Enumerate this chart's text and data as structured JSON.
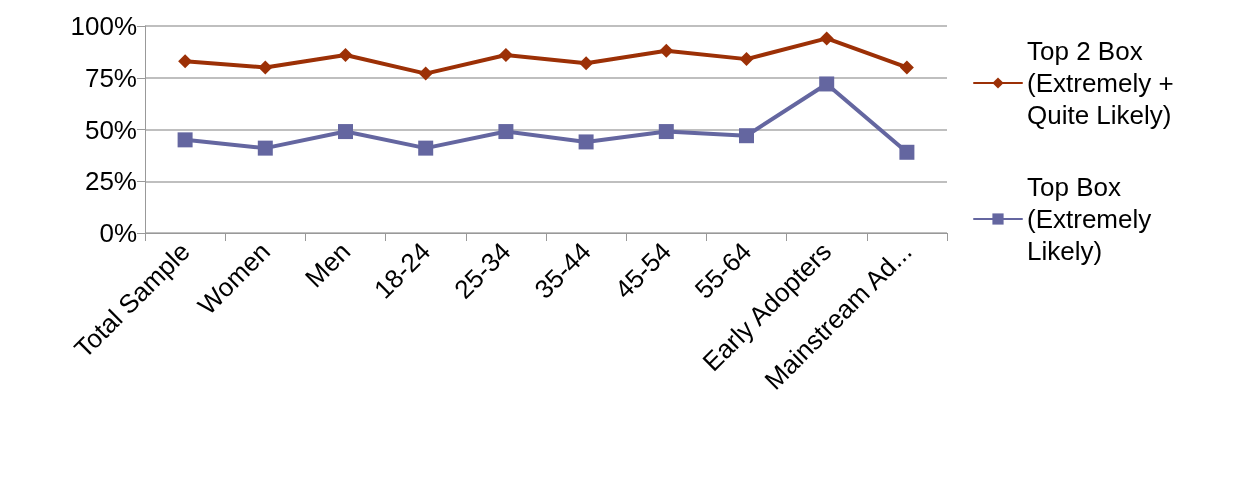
{
  "chart_data": {
    "type": "line",
    "categories": [
      "Total Sample",
      "Women",
      "Men",
      "18-24",
      "25-34",
      "35-44",
      "45-54",
      "55-64",
      "Early Adopters",
      "Mainstream Ad..."
    ],
    "series": [
      {
        "name": "Top 2 Box (Extremely + Quite Likely)",
        "color": "#9c3006",
        "marker": "diamond",
        "values": [
          83,
          80,
          86,
          77,
          86,
          82,
          88,
          84,
          94,
          80
        ]
      },
      {
        "name": "Top Box (Extremely Likely)",
        "color": "#6466a0",
        "marker": "square",
        "values": [
          45,
          41,
          49,
          41,
          49,
          44,
          49,
          47,
          72,
          39
        ]
      }
    ],
    "ylim": [
      0,
      100
    ],
    "yticks": [
      {
        "value": 0,
        "label": "0%"
      },
      {
        "value": 25,
        "label": "25%"
      },
      {
        "value": 50,
        "label": "50%"
      },
      {
        "value": 75,
        "label": "75%"
      },
      {
        "value": 100,
        "label": "100%"
      }
    ],
    "grid": "y",
    "legend": "right",
    "line_style": "solid"
  }
}
